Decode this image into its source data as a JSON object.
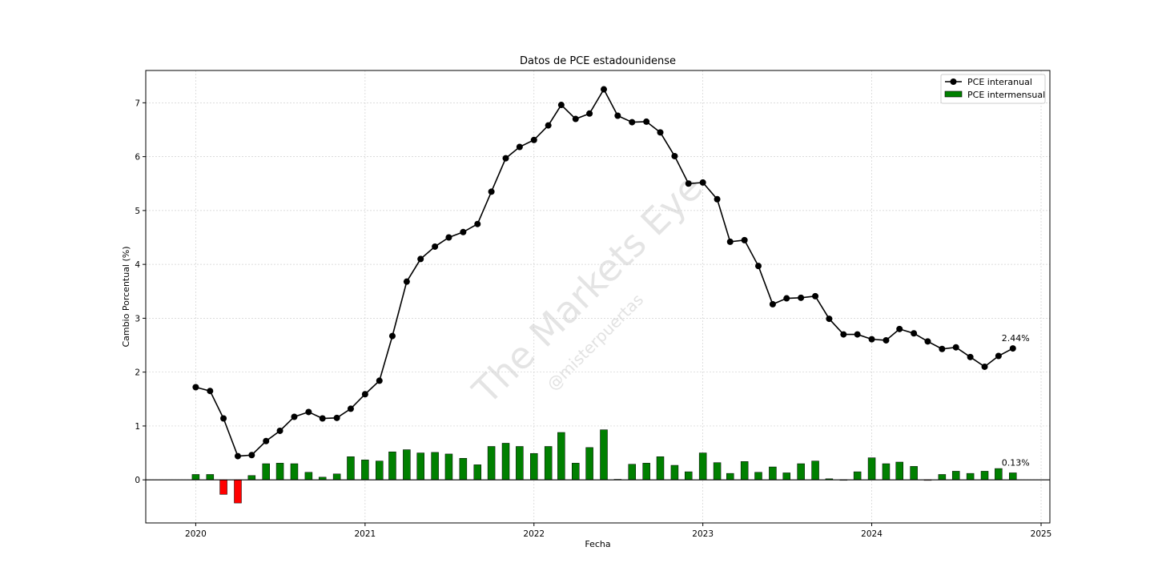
{
  "chart_data": {
    "type": "bar+line",
    "title": "Datos de PCE estadounidense",
    "xlabel": "Fecha",
    "ylabel": "Cambio Porcentual (%)",
    "xlim": [
      "2019-09-15",
      "2025-01-20"
    ],
    "ylim": [
      -0.8,
      7.6
    ],
    "x_ticks": [
      "2020",
      "2021",
      "2022",
      "2023",
      "2024",
      "2025"
    ],
    "y_ticks": [
      "0",
      "1",
      "2",
      "3",
      "4",
      "5",
      "6",
      "7"
    ],
    "grid": true,
    "legend_position": "top-right",
    "watermark": "The Markets Eye",
    "watermark_sub": "@misterpuertas",
    "positive_color": "#008000",
    "negative_color": "#ff0000",
    "line_color": "#000000",
    "months": [
      "2020-01",
      "2020-02",
      "2020-03",
      "2020-04",
      "2020-05",
      "2020-06",
      "2020-07",
      "2020-08",
      "2020-09",
      "2020-10",
      "2020-11",
      "2020-12",
      "2021-01",
      "2021-02",
      "2021-03",
      "2021-04",
      "2021-05",
      "2021-06",
      "2021-07",
      "2021-08",
      "2021-09",
      "2021-10",
      "2021-11",
      "2021-12",
      "2022-01",
      "2022-02",
      "2022-03",
      "2022-04",
      "2022-05",
      "2022-06",
      "2022-07",
      "2022-08",
      "2022-09",
      "2022-10",
      "2022-11",
      "2022-12",
      "2023-01",
      "2023-02",
      "2023-03",
      "2023-04",
      "2023-05",
      "2023-06",
      "2023-07",
      "2023-08",
      "2023-09",
      "2023-10",
      "2023-11",
      "2023-12",
      "2024-01",
      "2024-02",
      "2024-03",
      "2024-04",
      "2024-05",
      "2024-06",
      "2024-07",
      "2024-08",
      "2024-09",
      "2024-10",
      "2024-11"
    ],
    "series": [
      {
        "name": "PCE interanual",
        "type": "line",
        "values": [
          1.72,
          1.65,
          1.14,
          0.44,
          0.46,
          0.72,
          0.91,
          1.17,
          1.26,
          1.14,
          1.15,
          1.32,
          1.59,
          1.84,
          2.67,
          3.68,
          4.1,
          4.33,
          4.5,
          4.6,
          4.75,
          5.35,
          5.97,
          6.18,
          6.31,
          6.58,
          6.96,
          6.7,
          6.8,
          7.25,
          6.76,
          6.64,
          6.65,
          6.45,
          6.01,
          5.5,
          5.52,
          5.21,
          4.42,
          4.45,
          3.97,
          3.26,
          3.37,
          3.38,
          3.41,
          2.99,
          2.7,
          2.7,
          2.61,
          2.59,
          2.8,
          2.72,
          2.57,
          2.43,
          2.46,
          2.28,
          2.1,
          2.3,
          2.44
        ]
      },
      {
        "name": "PCE intermensual",
        "type": "bar",
        "values": [
          0.1,
          0.1,
          -0.27,
          -0.43,
          0.08,
          0.3,
          0.31,
          0.3,
          0.14,
          0.05,
          0.11,
          0.43,
          0.37,
          0.35,
          0.52,
          0.56,
          0.5,
          0.51,
          0.48,
          0.4,
          0.28,
          0.62,
          0.68,
          0.62,
          0.49,
          0.62,
          0.88,
          0.31,
          0.6,
          0.93,
          0.01,
          0.29,
          0.31,
          0.43,
          0.27,
          0.15,
          0.5,
          0.32,
          0.12,
          0.34,
          0.14,
          0.24,
          0.13,
          0.3,
          0.35,
          0.02,
          0.0,
          0.15,
          0.41,
          0.3,
          0.33,
          0.25,
          -0.01,
          0.1,
          0.16,
          0.12,
          0.16,
          0.21,
          0.13
        ]
      }
    ],
    "annotations": [
      {
        "text": "2.44%",
        "series": "PCE interanual",
        "month": "2024-11"
      },
      {
        "text": "0.13%",
        "series": "PCE intermensual",
        "month": "2024-11"
      }
    ]
  }
}
